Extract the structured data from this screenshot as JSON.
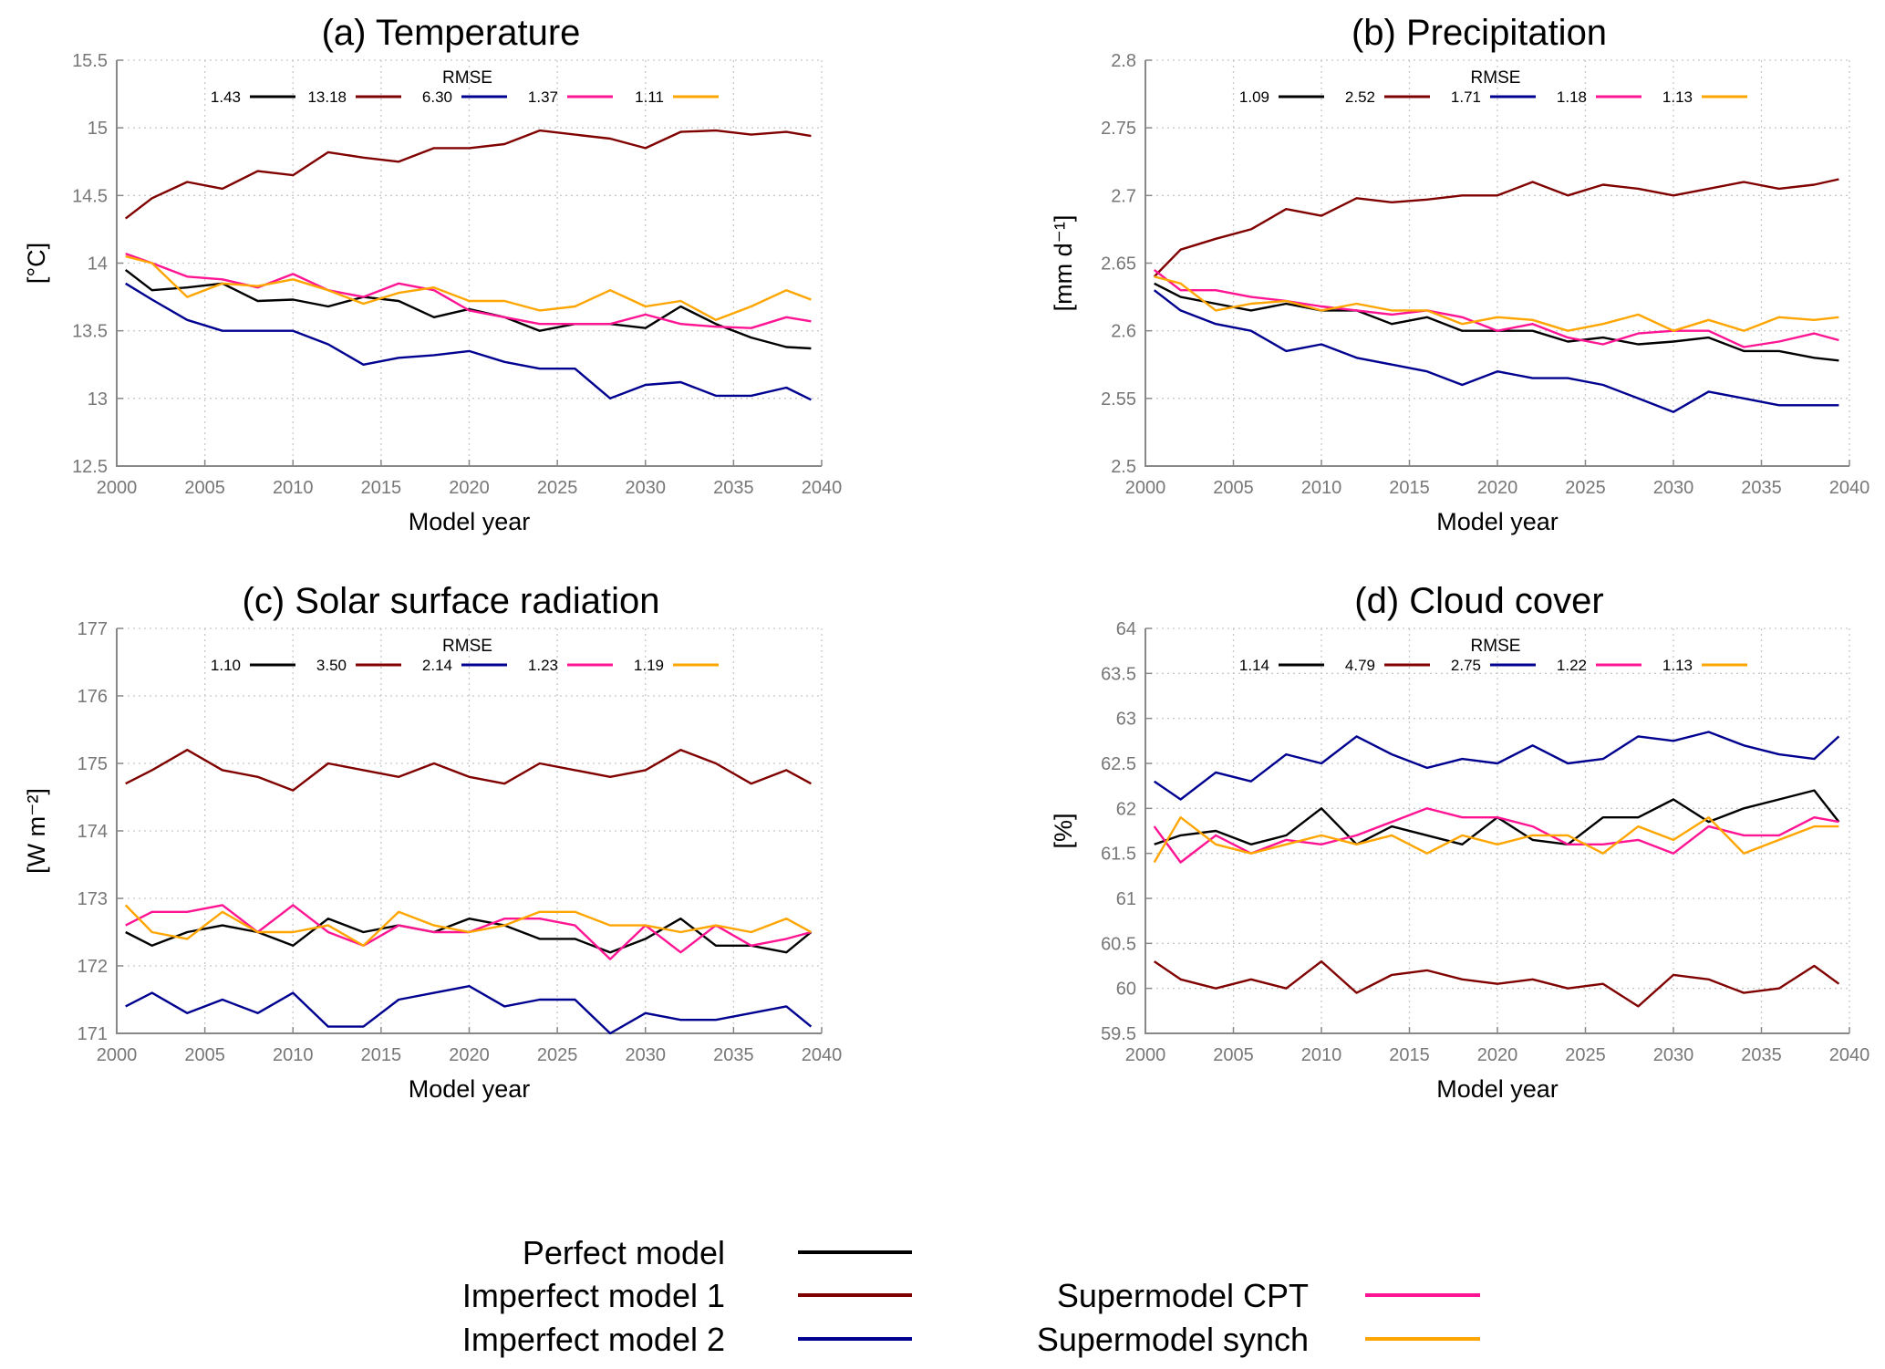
{
  "x": [
    2000.5,
    2002,
    2004,
    2006,
    2008,
    2010,
    2012,
    2014,
    2016,
    2018,
    2020,
    2022,
    2024,
    2026,
    2028,
    2030,
    2032,
    2034,
    2036,
    2038,
    2039.4
  ],
  "legend": {
    "items": [
      {
        "label": "Perfect model",
        "color": "#000000"
      },
      {
        "label": "Imperfect model 1",
        "color": "#800000"
      },
      {
        "label": "Imperfect model 2",
        "color": "#000090"
      },
      {
        "label": "Supermodel CPT",
        "color": "#ff1493"
      },
      {
        "label": "Supermodel synch",
        "color": "#ffa500"
      }
    ]
  },
  "chart_data": [
    {
      "type": "line",
      "title": "(a) Temperature",
      "xlabel": "Model year",
      "ylabel": "[°C]",
      "xlim": [
        2000,
        2040
      ],
      "ylim": [
        12.5,
        15.5
      ],
      "xticks": [
        "2000",
        "2005",
        "2010",
        "2015",
        "2020",
        "2025",
        "2030",
        "2035",
        "2040"
      ],
      "yticks": [
        "12.5",
        "13",
        "13.5",
        "14",
        "14.5",
        "15",
        "15.5"
      ],
      "grid": true,
      "legend_title": "RMSE",
      "series": [
        {
          "name": "Perfect model",
          "rmse": "1.43",
          "values": [
            13.95,
            13.8,
            13.82,
            13.85,
            13.72,
            13.73,
            13.68,
            13.75,
            13.72,
            13.6,
            13.66,
            13.6,
            13.5,
            13.55,
            13.55,
            13.52,
            13.68,
            13.55,
            13.45,
            13.38,
            13.37
          ]
        },
        {
          "name": "Imperfect model 1",
          "rmse": "13.18",
          "values": [
            14.33,
            14.48,
            14.6,
            14.55,
            14.68,
            14.65,
            14.82,
            14.78,
            14.75,
            14.85,
            14.85,
            14.88,
            14.98,
            14.95,
            14.92,
            14.85,
            14.97,
            14.98,
            14.95,
            14.97,
            14.94
          ]
        },
        {
          "name": "Imperfect model 2",
          "rmse": "6.30",
          "values": [
            13.85,
            13.73,
            13.58,
            13.5,
            13.5,
            13.5,
            13.4,
            13.25,
            13.3,
            13.32,
            13.35,
            13.27,
            13.22,
            13.22,
            13.0,
            13.1,
            13.12,
            13.02,
            13.02,
            13.08,
            12.99
          ]
        },
        {
          "name": "Supermodel CPT",
          "rmse": "1.37",
          "values": [
            14.07,
            14.0,
            13.9,
            13.88,
            13.82,
            13.92,
            13.8,
            13.75,
            13.85,
            13.8,
            13.65,
            13.6,
            13.55,
            13.55,
            13.55,
            13.62,
            13.55,
            13.53,
            13.52,
            13.6,
            13.57
          ]
        },
        {
          "name": "Supermodel synch",
          "rmse": "1.11",
          "values": [
            14.05,
            14.0,
            13.75,
            13.85,
            13.83,
            13.88,
            13.8,
            13.7,
            13.78,
            13.82,
            13.72,
            13.72,
            13.65,
            13.68,
            13.8,
            13.68,
            13.72,
            13.58,
            13.68,
            13.8,
            13.73
          ]
        }
      ]
    },
    {
      "type": "line",
      "title": "(b) Precipitation",
      "xlabel": "Model year",
      "ylabel": "[mm d⁻¹]",
      "xlim": [
        2000,
        2040
      ],
      "ylim": [
        2.5,
        2.8
      ],
      "xticks": [
        "2000",
        "2005",
        "2010",
        "2015",
        "2020",
        "2025",
        "2030",
        "2035",
        "2040"
      ],
      "yticks": [
        "2.5",
        "2.55",
        "2.6",
        "2.65",
        "2.7",
        "2.75",
        "2.8"
      ],
      "grid": true,
      "legend_title": "RMSE",
      "series": [
        {
          "name": "Perfect model",
          "rmse": "1.09",
          "values": [
            2.635,
            2.625,
            2.62,
            2.615,
            2.62,
            2.615,
            2.615,
            2.605,
            2.61,
            2.6,
            2.6,
            2.6,
            2.592,
            2.595,
            2.59,
            2.592,
            2.595,
            2.585,
            2.585,
            2.58,
            2.578
          ]
        },
        {
          "name": "Imperfect model 1",
          "rmse": "2.52",
          "values": [
            2.64,
            2.66,
            2.668,
            2.675,
            2.69,
            2.685,
            2.698,
            2.695,
            2.697,
            2.7,
            2.7,
            2.71,
            2.7,
            2.708,
            2.705,
            2.7,
            2.705,
            2.71,
            2.705,
            2.708,
            2.712
          ]
        },
        {
          "name": "Imperfect model 2",
          "rmse": "1.71",
          "values": [
            2.63,
            2.615,
            2.605,
            2.6,
            2.585,
            2.59,
            2.58,
            2.575,
            2.57,
            2.56,
            2.57,
            2.565,
            2.565,
            2.56,
            2.55,
            2.54,
            2.555,
            2.55,
            2.545,
            2.545,
            2.545
          ]
        },
        {
          "name": "Supermodel CPT",
          "rmse": "1.18",
          "values": [
            2.645,
            2.63,
            2.63,
            2.625,
            2.622,
            2.618,
            2.615,
            2.612,
            2.615,
            2.61,
            2.6,
            2.605,
            2.595,
            2.59,
            2.598,
            2.6,
            2.6,
            2.588,
            2.592,
            2.598,
            2.593
          ]
        },
        {
          "name": "Supermodel synch",
          "rmse": "1.13",
          "values": [
            2.64,
            2.635,
            2.615,
            2.62,
            2.622,
            2.615,
            2.62,
            2.615,
            2.615,
            2.605,
            2.61,
            2.608,
            2.6,
            2.605,
            2.612,
            2.6,
            2.608,
            2.6,
            2.61,
            2.608,
            2.61
          ]
        }
      ]
    },
    {
      "type": "line",
      "title": "(c) Solar surface radiation",
      "xlabel": "Model year",
      "ylabel": "[W m⁻²]",
      "xlim": [
        2000,
        2040
      ],
      "ylim": [
        171,
        177
      ],
      "xticks": [
        "2000",
        "2005",
        "2010",
        "2015",
        "2020",
        "2025",
        "2030",
        "2035",
        "2040"
      ],
      "yticks": [
        "171",
        "172",
        "173",
        "174",
        "175",
        "176",
        "177"
      ],
      "grid": true,
      "legend_title": "RMSE",
      "series": [
        {
          "name": "Perfect model",
          "rmse": "1.10",
          "values": [
            172.5,
            172.3,
            172.5,
            172.6,
            172.5,
            172.3,
            172.7,
            172.5,
            172.6,
            172.5,
            172.7,
            172.6,
            172.4,
            172.4,
            172.2,
            172.4,
            172.7,
            172.3,
            172.3,
            172.2,
            172.5
          ]
        },
        {
          "name": "Imperfect model 1",
          "rmse": "3.50",
          "values": [
            174.7,
            174.9,
            175.2,
            174.9,
            174.8,
            174.6,
            175.0,
            174.9,
            174.8,
            175.0,
            174.8,
            174.7,
            175.0,
            174.9,
            174.8,
            174.9,
            175.2,
            175.0,
            174.7,
            174.9,
            174.7
          ]
        },
        {
          "name": "Imperfect model 2",
          "rmse": "2.14",
          "values": [
            171.4,
            171.6,
            171.3,
            171.5,
            171.3,
            171.6,
            171.1,
            171.1,
            171.5,
            171.6,
            171.7,
            171.4,
            171.5,
            171.5,
            171.0,
            171.3,
            171.2,
            171.2,
            171.3,
            171.4,
            171.1
          ]
        },
        {
          "name": "Supermodel CPT",
          "rmse": "1.23",
          "values": [
            172.6,
            172.8,
            172.8,
            172.9,
            172.5,
            172.9,
            172.5,
            172.3,
            172.6,
            172.5,
            172.5,
            172.7,
            172.7,
            172.6,
            172.1,
            172.6,
            172.2,
            172.6,
            172.3,
            172.4,
            172.5
          ]
        },
        {
          "name": "Supermodel synch",
          "rmse": "1.19",
          "values": [
            172.9,
            172.5,
            172.4,
            172.8,
            172.5,
            172.5,
            172.6,
            172.3,
            172.8,
            172.6,
            172.5,
            172.6,
            172.8,
            172.8,
            172.6,
            172.6,
            172.5,
            172.6,
            172.5,
            172.7,
            172.5
          ]
        }
      ]
    },
    {
      "type": "line",
      "title": "(d) Cloud cover",
      "xlabel": "Model year",
      "ylabel": "[%]",
      "xlim": [
        2000,
        2040
      ],
      "ylim": [
        59.5,
        64
      ],
      "xticks": [
        "2000",
        "2005",
        "2010",
        "2015",
        "2020",
        "2025",
        "2030",
        "2035",
        "2040"
      ],
      "yticks": [
        "59.5",
        "60",
        "60.5",
        "61",
        "61.5",
        "62",
        "62.5",
        "63",
        "63.5",
        "64"
      ],
      "grid": true,
      "legend_title": "RMSE",
      "series": [
        {
          "name": "Perfect model",
          "rmse": "1.14",
          "values": [
            61.6,
            61.7,
            61.75,
            61.6,
            61.7,
            62.0,
            61.6,
            61.8,
            61.7,
            61.6,
            61.9,
            61.65,
            61.6,
            61.9,
            61.9,
            62.1,
            61.85,
            62.0,
            62.1,
            62.2,
            61.85
          ]
        },
        {
          "name": "Imperfect model 1",
          "rmse": "4.79",
          "values": [
            60.3,
            60.1,
            60.0,
            60.1,
            60.0,
            60.3,
            59.95,
            60.15,
            60.2,
            60.1,
            60.05,
            60.1,
            60.0,
            60.05,
            59.8,
            60.15,
            60.1,
            59.95,
            60.0,
            60.25,
            60.05
          ]
        },
        {
          "name": "Imperfect model 2",
          "rmse": "2.75",
          "values": [
            62.3,
            62.1,
            62.4,
            62.3,
            62.6,
            62.5,
            62.8,
            62.6,
            62.45,
            62.55,
            62.5,
            62.7,
            62.5,
            62.55,
            62.8,
            62.75,
            62.85,
            62.7,
            62.6,
            62.55,
            62.8
          ]
        },
        {
          "name": "Supermodel CPT",
          "rmse": "1.22",
          "values": [
            61.8,
            61.4,
            61.7,
            61.5,
            61.65,
            61.6,
            61.7,
            61.85,
            62.0,
            61.9,
            61.9,
            61.8,
            61.6,
            61.6,
            61.65,
            61.5,
            61.8,
            61.7,
            61.7,
            61.9,
            61.85
          ]
        },
        {
          "name": "Supermodel synch",
          "rmse": "1.13",
          "values": [
            61.4,
            61.9,
            61.6,
            61.5,
            61.6,
            61.7,
            61.6,
            61.7,
            61.5,
            61.7,
            61.6,
            61.7,
            61.7,
            61.5,
            61.8,
            61.65,
            61.9,
            61.5,
            61.65,
            61.8,
            61.8
          ]
        }
      ]
    }
  ]
}
